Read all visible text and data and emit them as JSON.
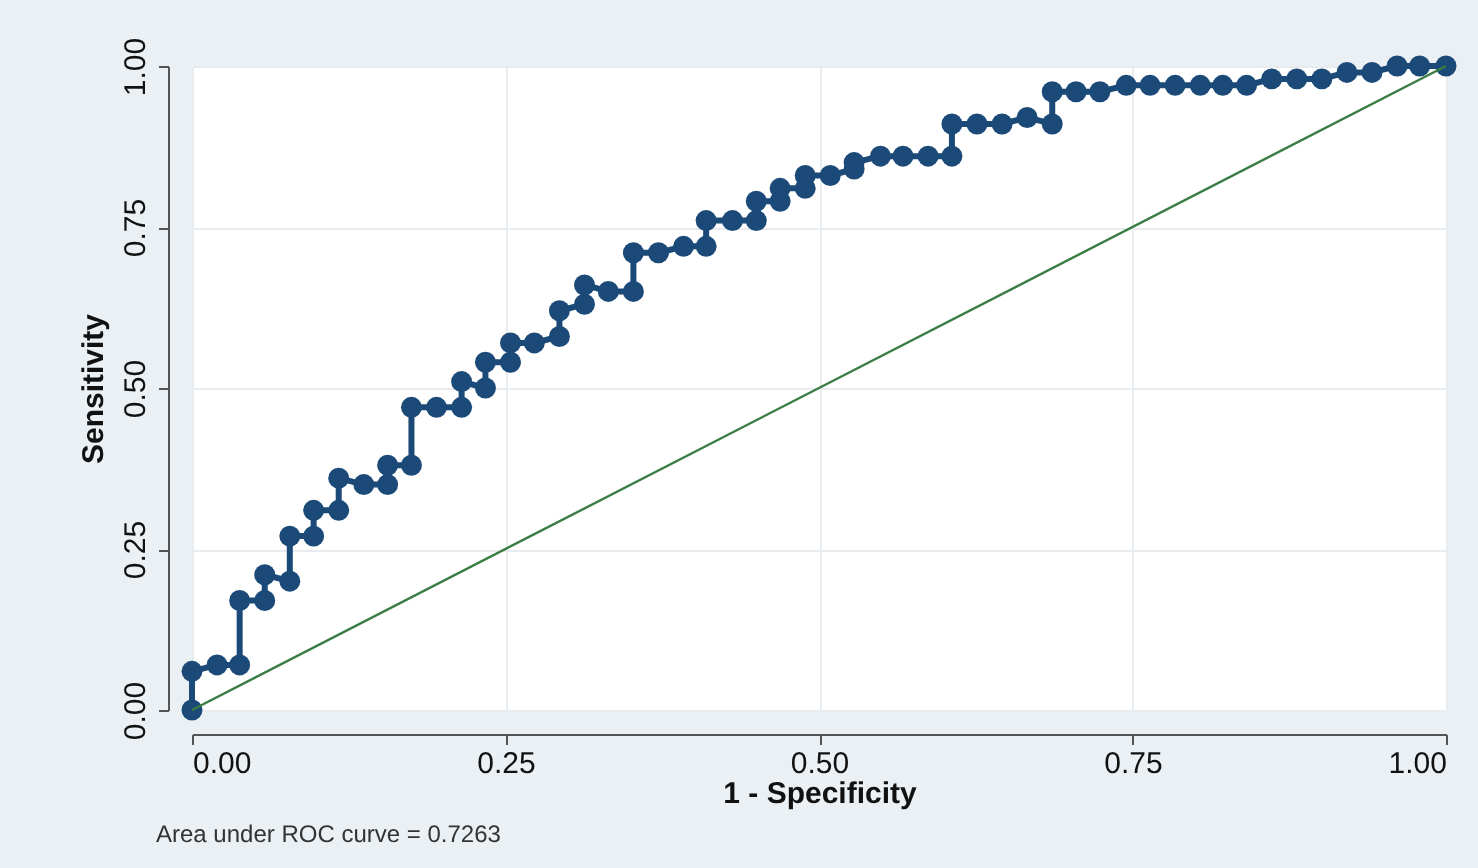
{
  "chart_data": {
    "type": "line",
    "xlabel": "1 - Specificity",
    "ylabel": "Sensitivity",
    "xlim": [
      0,
      1
    ],
    "ylim": [
      0,
      1
    ],
    "xticks": [
      {
        "value": 0,
        "label": "0.00"
      },
      {
        "value": 0.25,
        "label": "0.25"
      },
      {
        "value": 0.5,
        "label": "0.50"
      },
      {
        "value": 0.75,
        "label": "0.75"
      },
      {
        "value": 1,
        "label": "1.00"
      }
    ],
    "yticks": [
      {
        "value": 0,
        "label": "0.00"
      },
      {
        "value": 0.25,
        "label": "0.25"
      },
      {
        "value": 0.5,
        "label": "0.50"
      },
      {
        "value": 0.75,
        "label": "0.75"
      },
      {
        "value": 1,
        "label": "1.00"
      }
    ],
    "grid": true,
    "marker": "circle",
    "annotations": [
      "Area under ROC curve = 0.7263"
    ],
    "series": [
      {
        "color": "#1b4a78",
        "x": [
          0,
          0,
          0.02,
          0.038,
          0.038,
          0.058,
          0.058,
          0.078,
          0.078,
          0.097,
          0.097,
          0.117,
          0.117,
          0.137,
          0.156,
          0.156,
          0.175,
          0.175,
          0.195,
          0.215,
          0.215,
          0.234,
          0.234,
          0.254,
          0.254,
          0.273,
          0.293,
          0.293,
          0.313,
          0.313,
          0.332,
          0.352,
          0.352,
          0.372,
          0.392,
          0.41,
          0.41,
          0.431,
          0.45,
          0.45,
          0.469,
          0.469,
          0.489,
          0.489,
          0.509,
          0.528,
          0.528,
          0.549,
          0.567,
          0.587,
          0.606,
          0.606,
          0.626,
          0.646,
          0.666,
          0.686,
          0.686,
          0.705,
          0.724,
          0.745,
          0.764,
          0.784,
          0.804,
          0.822,
          0.841,
          0.861,
          0.881,
          0.901,
          0.921,
          0.941,
          0.961,
          0.979,
          1
        ],
        "values": [
          0,
          0.06,
          0.07,
          0.07,
          0.17,
          0.17,
          0.21,
          0.2,
          0.27,
          0.27,
          0.31,
          0.31,
          0.36,
          0.35,
          0.35,
          0.38,
          0.38,
          0.47,
          0.47,
          0.47,
          0.51,
          0.5,
          0.54,
          0.54,
          0.57,
          0.57,
          0.58,
          0.62,
          0.63,
          0.66,
          0.65,
          0.65,
          0.71,
          0.71,
          0.72,
          0.72,
          0.76,
          0.76,
          0.76,
          0.79,
          0.79,
          0.81,
          0.81,
          0.83,
          0.83,
          0.84,
          0.85,
          0.86,
          0.86,
          0.86,
          0.86,
          0.91,
          0.91,
          0.91,
          0.92,
          0.91,
          0.96,
          0.96,
          0.96,
          0.97,
          0.97,
          0.97,
          0.97,
          0.97,
          0.97,
          0.98,
          0.98,
          0.98,
          0.99,
          0.99,
          1,
          1,
          1
        ]
      },
      {
        "color": "#3a7d44",
        "type": "line",
        "marker": "none",
        "x": [
          0,
          1
        ],
        "values": [
          0,
          1
        ]
      }
    ]
  }
}
